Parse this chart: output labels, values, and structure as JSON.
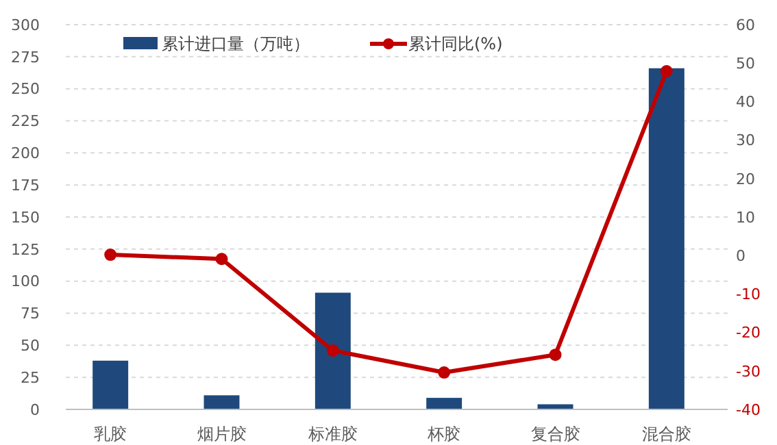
{
  "chart_data": {
    "type": "bar",
    "categories": [
      "乳胶",
      "烟片胶",
      "标准胶",
      "杯胶",
      "复合胶",
      "混合胶"
    ],
    "series": [
      {
        "name": "累计进口量（万吨）",
        "color": "#1f497d",
        "values": [
          38,
          11,
          91,
          9,
          4,
          266
        ]
      },
      {
        "name": "累计同比(%)",
        "type": "line",
        "axis": "y2",
        "color": "#c00000",
        "marker": "circle",
        "values": [
          0.2,
          -0.9,
          -24.7,
          -30.4,
          -25.8,
          47.9
        ]
      }
    ],
    "ylim": [
      0,
      300
    ],
    "yticks": [
      0,
      25,
      50,
      75,
      100,
      125,
      150,
      175,
      200,
      225,
      250,
      275,
      300
    ],
    "y2lim": [
      -40,
      60
    ],
    "y2ticks": [
      -40,
      -30,
      -20,
      -10,
      0,
      10,
      20,
      30,
      40,
      50,
      60
    ],
    "grid": "y",
    "legend": "top"
  }
}
